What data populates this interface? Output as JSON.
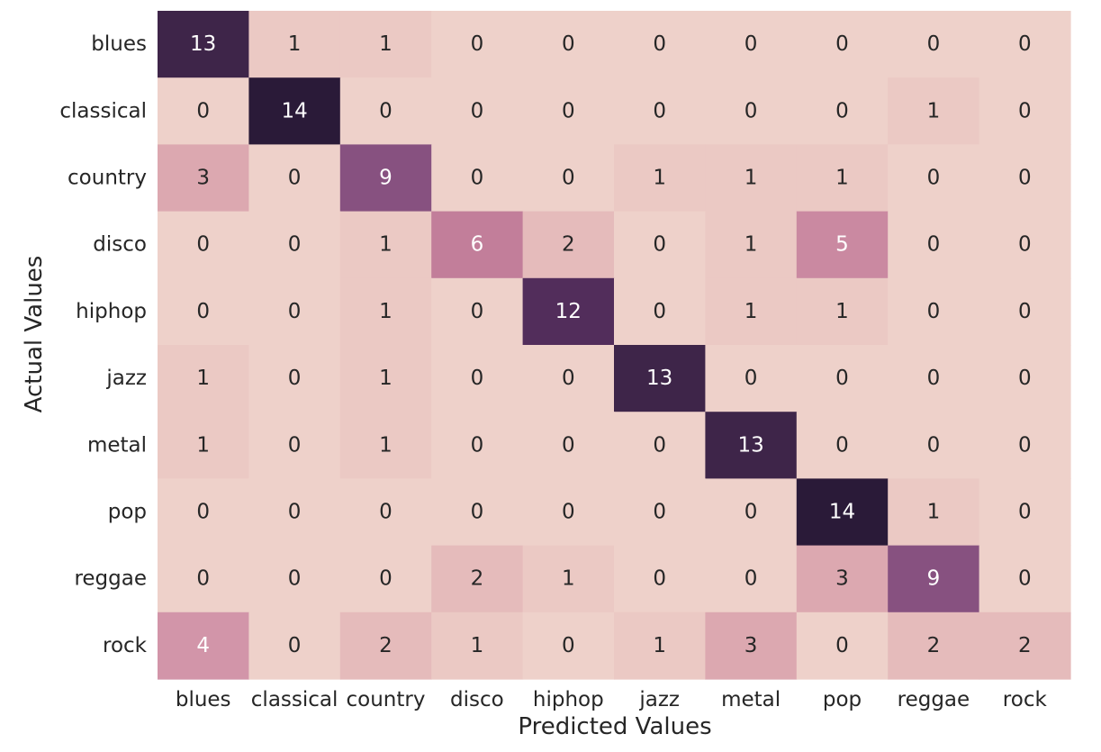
{
  "chart_data": {
    "type": "heatmap",
    "xlabel": "Predicted Values",
    "ylabel": "Actual Values",
    "x_categories": [
      "blues",
      "classical",
      "country",
      "disco",
      "hiphop",
      "jazz",
      "metal",
      "pop",
      "reggae",
      "rock"
    ],
    "y_categories": [
      "blues",
      "classical",
      "country",
      "disco",
      "hiphop",
      "jazz",
      "metal",
      "pop",
      "reggae",
      "rock"
    ],
    "values": [
      [
        13,
        1,
        1,
        0,
        0,
        0,
        0,
        0,
        0,
        0
      ],
      [
        0,
        14,
        0,
        0,
        0,
        0,
        0,
        0,
        1,
        0
      ],
      [
        3,
        0,
        9,
        0,
        0,
        1,
        1,
        1,
        0,
        0
      ],
      [
        0,
        0,
        1,
        6,
        2,
        0,
        1,
        5,
        0,
        0
      ],
      [
        0,
        0,
        1,
        0,
        12,
        0,
        1,
        1,
        0,
        0
      ],
      [
        1,
        0,
        1,
        0,
        0,
        13,
        0,
        0,
        0,
        0
      ],
      [
        1,
        0,
        1,
        0,
        0,
        0,
        13,
        0,
        0,
        0
      ],
      [
        0,
        0,
        0,
        0,
        0,
        0,
        0,
        14,
        1,
        0
      ],
      [
        0,
        0,
        0,
        2,
        1,
        0,
        0,
        3,
        9,
        0
      ],
      [
        4,
        0,
        2,
        1,
        0,
        1,
        3,
        0,
        2,
        2
      ]
    ],
    "color_range": [
      0,
      14
    ],
    "colors": {
      "low": "#eed1ca",
      "high": "#2a1a38"
    },
    "annotations": true,
    "colorbar": false,
    "grid": false
  }
}
